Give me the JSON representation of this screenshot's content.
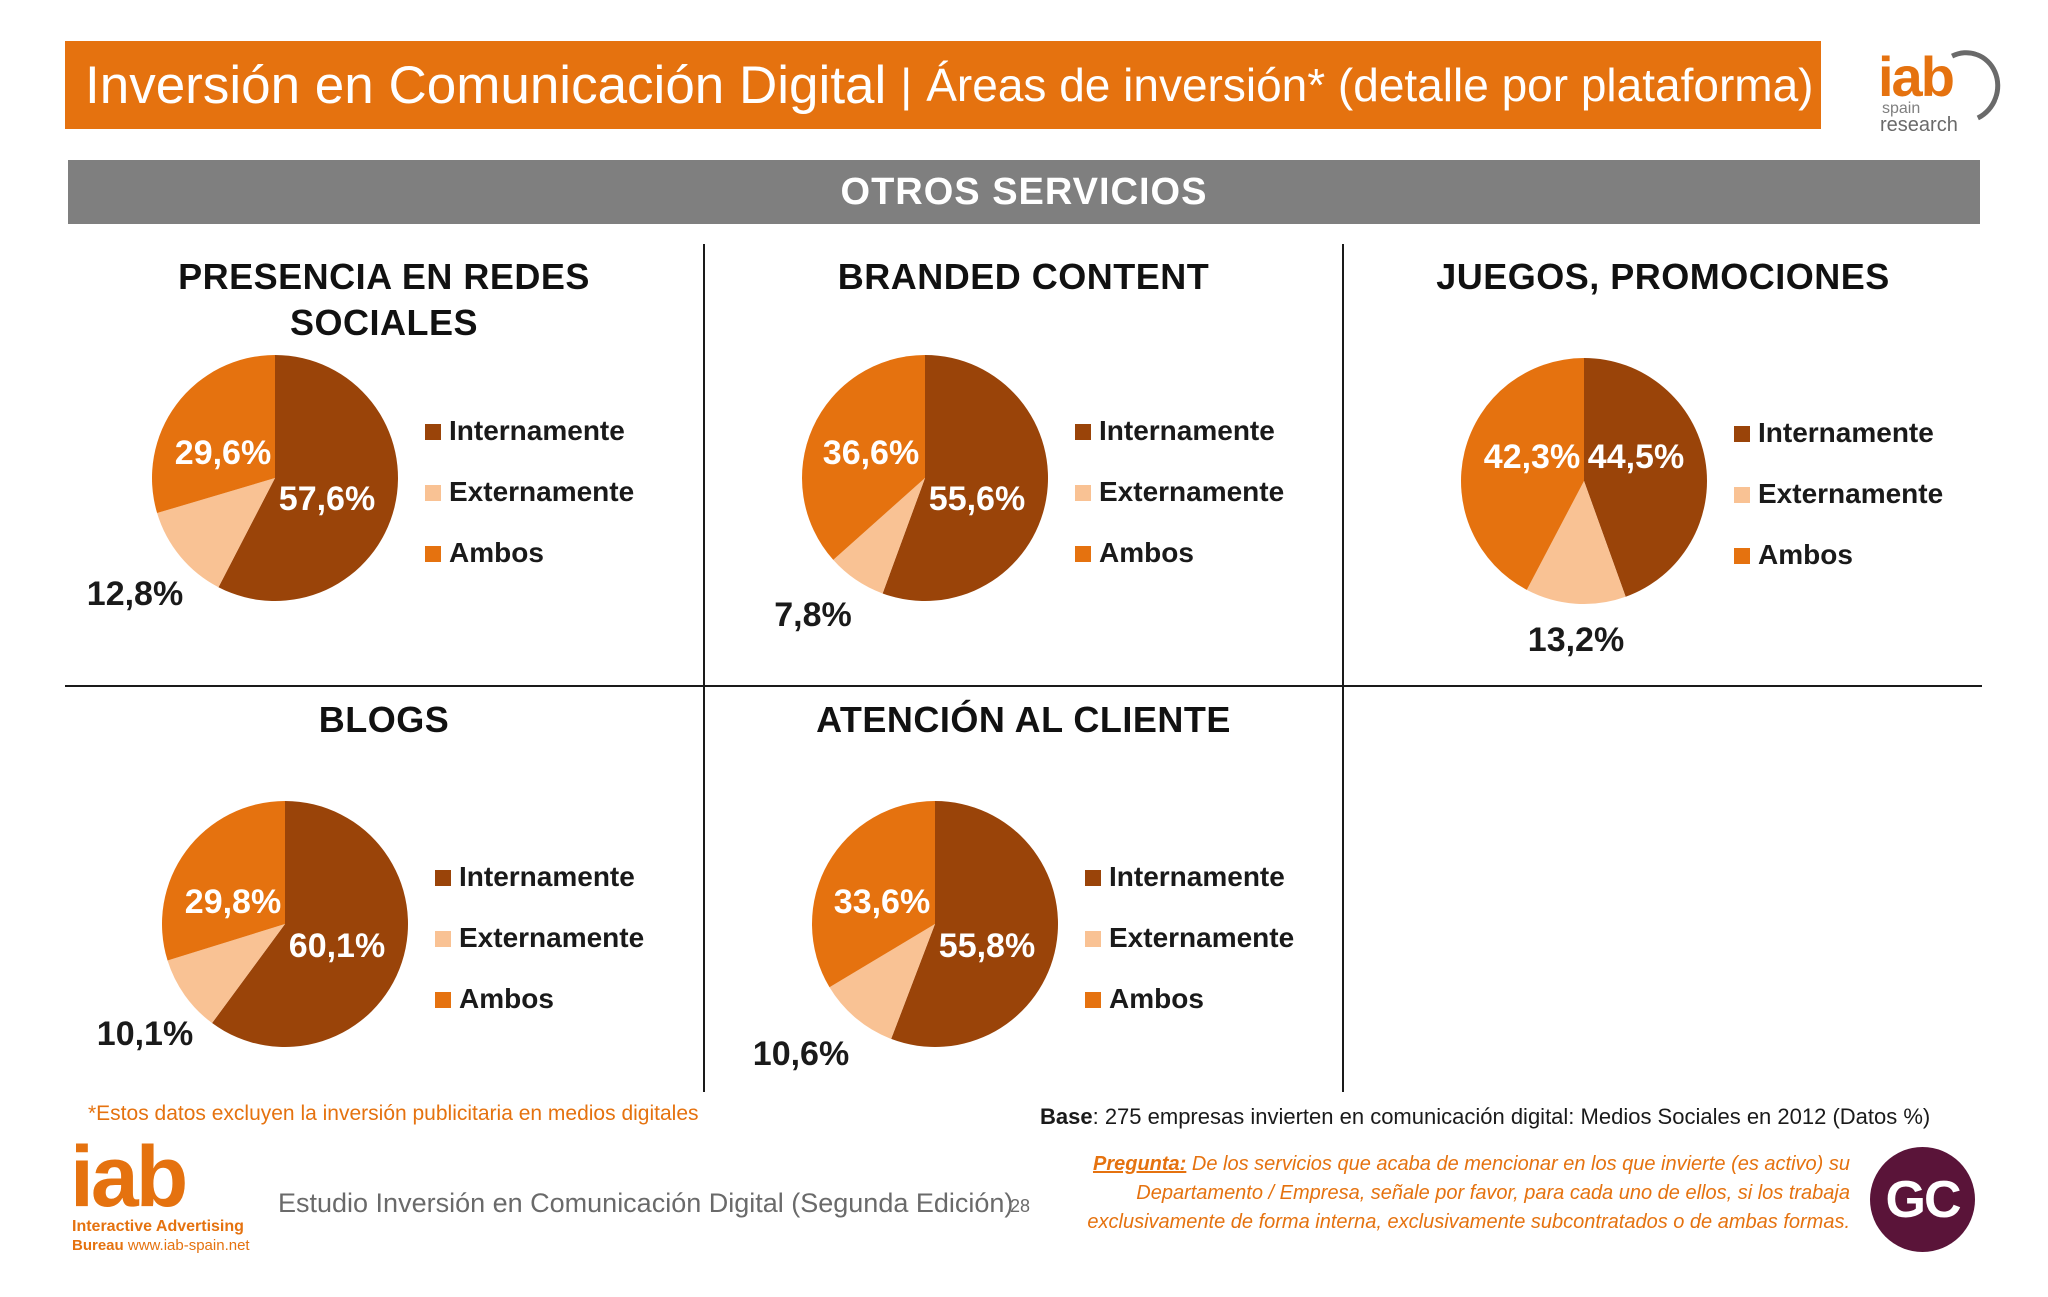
{
  "header": {
    "title": "Inversión en Comunicación Digital",
    "separator": "|",
    "subtitle": "Áreas de inversión* (detalle por plataforma)"
  },
  "logo_top": {
    "brand": "iab",
    "line1": "spain",
    "line2": "research"
  },
  "section": {
    "title": "OTROS SERVICIOS"
  },
  "colors": {
    "internamente": "#9a4409",
    "externamente": "#f9c294",
    "ambos": "#e5720f",
    "accent": "#e5720f"
  },
  "chart_data": [
    {
      "type": "pie",
      "title": "PRESENCIA EN REDES SOCIALES",
      "title_lines": [
        "PRESENCIA EN REDES",
        "SOCIALES"
      ],
      "categories": [
        "Internamente",
        "Externamente",
        "Ambos"
      ],
      "values": [
        57.6,
        12.8,
        29.6
      ],
      "labels": [
        "57,6%",
        "12,8%",
        "29,6%"
      ]
    },
    {
      "type": "pie",
      "title": "BRANDED CONTENT",
      "title_lines": [
        "BRANDED CONTENT"
      ],
      "categories": [
        "Internamente",
        "Externamente",
        "Ambos"
      ],
      "values": [
        55.6,
        7.8,
        36.6
      ],
      "labels": [
        "55,6%",
        "7,8%",
        "36,6%"
      ]
    },
    {
      "type": "pie",
      "title": "JUEGOS, PROMOCIONES",
      "title_lines": [
        "JUEGOS, PROMOCIONES"
      ],
      "categories": [
        "Internamente",
        "Externamente",
        "Ambos"
      ],
      "values": [
        44.5,
        13.2,
        42.3
      ],
      "labels": [
        "44,5%",
        "13,2%",
        "42,3%"
      ]
    },
    {
      "type": "pie",
      "title": "BLOGS",
      "title_lines": [
        "BLOGS"
      ],
      "categories": [
        "Internamente",
        "Externamente",
        "Ambos"
      ],
      "values": [
        60.1,
        10.1,
        29.8
      ],
      "labels": [
        "60,1%",
        "10,1%",
        "29,8%"
      ]
    },
    {
      "type": "pie",
      "title": "ATENCIÓN AL CLIENTE",
      "title_lines": [
        "ATENCIÓN AL CLIENTE"
      ],
      "categories": [
        "Internamente",
        "Externamente",
        "Ambos"
      ],
      "values": [
        55.8,
        10.6,
        33.6
      ],
      "labels": [
        "55,8%",
        "10,6%",
        "33,6%"
      ]
    }
  ],
  "footer": {
    "footnote": "*Estos datos excluyen la inversión publicitaria en medios digitales",
    "base_label": "Base",
    "base_text": ": 275 empresas invierten en comunicación digital: Medios Sociales en 2012 (Datos %)",
    "pregunta_label": "Pregunta:",
    "pregunta_text": " De los servicios que acaba de mencionar en los que invierte (es activo) su Departamento / Empresa, señale por favor, para cada uno de ellos, si los trabaja exclusivamente de forma interna, exclusivamente subcontratados o de ambas formas.",
    "study": "Estudio Inversión en Comunicación Digital (Segunda Edición)",
    "page": "28",
    "logo_bottom_brand": "iab",
    "logo_bottom_line1": "Interactive Advertising",
    "logo_bottom_line2_bold": "Bureau",
    "logo_bottom_line2": " www.iab-spain.net",
    "gc_logo": "GC"
  }
}
